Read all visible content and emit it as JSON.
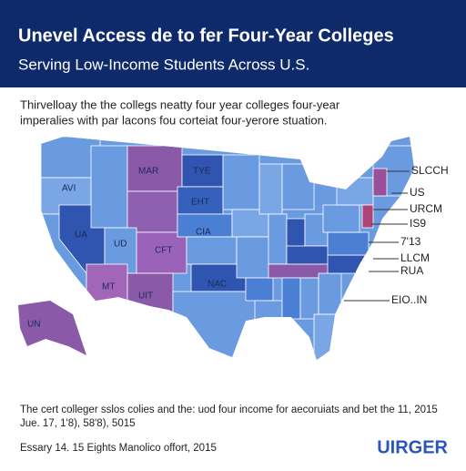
{
  "header": {
    "title": "Unevel Access de to fer Four-Year Colleges",
    "subtitle": "Serving Low-Income Students Across U.S."
  },
  "intro": {
    "lines": [
      "Thirvelloay the the collegs neatty four year colleges four-year",
      "imperalies with par lacons fou corteiat four-yerore stuation."
    ]
  },
  "map": {
    "labels": [
      "AVI",
      "MAR",
      "TYE",
      "EHT",
      "UA",
      "UD",
      "CFT",
      "CIA",
      "NAC",
      "MT",
      "UIT",
      "UN"
    ],
    "callouts": [
      "SLCCH",
      "US",
      "URCM",
      "IS9",
      "7'13",
      "LLCM",
      "RUA",
      "EIO..IN"
    ]
  },
  "footnote": {
    "lines": [
      "The cert colleger sslos colies and the: uod four income for aecoruiats and bet the 11, 2015",
      "Jue. 17, 1'8), 58'8), 5015"
    ]
  },
  "source": "Essary 14. 15 Eights Manolico offort, 2015",
  "logo": "UIRGER"
}
